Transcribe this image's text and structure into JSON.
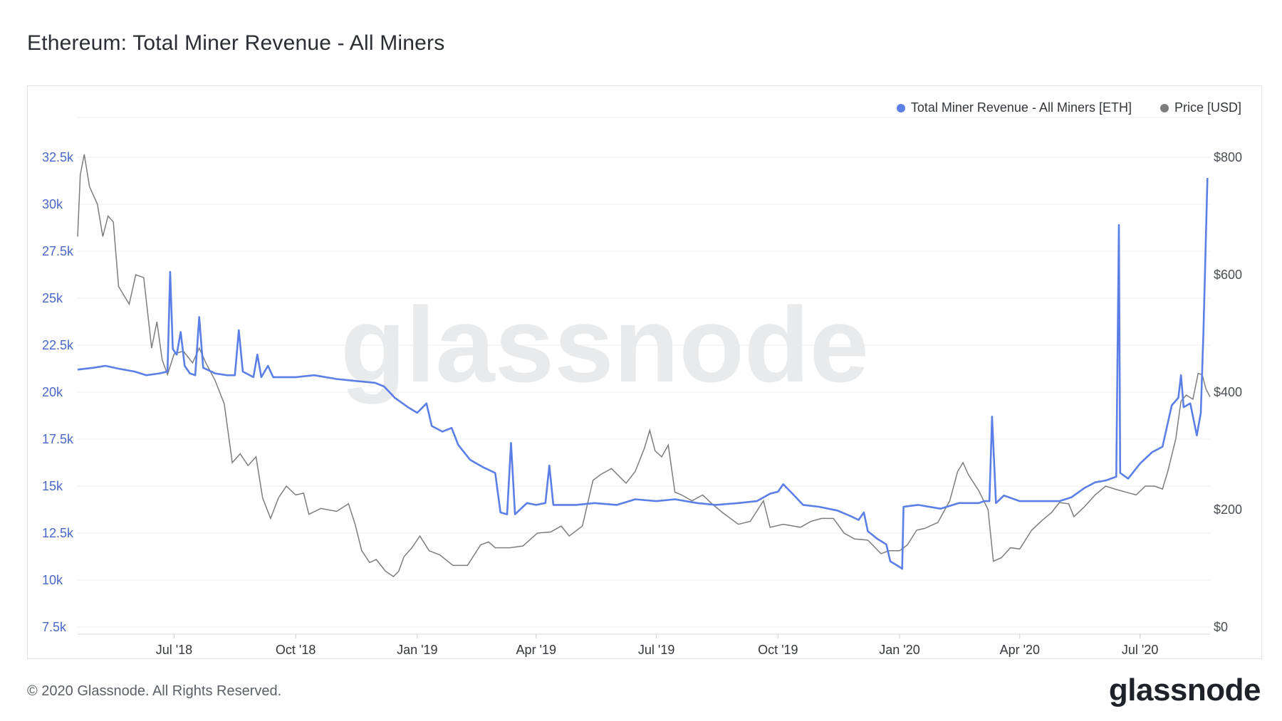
{
  "title": "Ethereum: Total Miner Revenue - All Miners",
  "footer": {
    "copyright": "© 2020 Glassnode. All Rights Reserved.",
    "brand": "glassnode"
  },
  "watermark": "glassnode",
  "colors": {
    "revenue": "#5b7fe6",
    "price": "#7d7d7d",
    "left_axis": "#4a67c9",
    "grid": "#ececec"
  },
  "chart_data": {
    "type": "line",
    "title": "Ethereum: Total Miner Revenue - All Miners",
    "legend_position": "top-right",
    "grid": true,
    "x_range": [
      "2018-04-19",
      "2020-08-23"
    ],
    "x_ticks": [
      {
        "date": "2018-07-01",
        "label": "Jul '18"
      },
      {
        "date": "2018-10-01",
        "label": "Oct '18"
      },
      {
        "date": "2019-01-01",
        "label": "Jan '19"
      },
      {
        "date": "2019-04-01",
        "label": "Apr '19"
      },
      {
        "date": "2019-07-01",
        "label": "Jul '19"
      },
      {
        "date": "2019-10-01",
        "label": "Oct '19"
      },
      {
        "date": "2020-01-01",
        "label": "Jan '20"
      },
      {
        "date": "2020-04-01",
        "label": "Apr '20"
      },
      {
        "date": "2020-07-01",
        "label": "Jul '20"
      }
    ],
    "y_left": {
      "min": 7500,
      "max": 32500,
      "ticks": [
        {
          "value": 7500,
          "label": "7.5k"
        },
        {
          "value": 10000,
          "label": "10k"
        },
        {
          "value": 12500,
          "label": "12.5k"
        },
        {
          "value": 15000,
          "label": "15k"
        },
        {
          "value": 17500,
          "label": "17.5k"
        },
        {
          "value": 20000,
          "label": "20k"
        },
        {
          "value": 22500,
          "label": "22.5k"
        },
        {
          "value": 25000,
          "label": "25k"
        },
        {
          "value": 27500,
          "label": "27.5k"
        },
        {
          "value": 30000,
          "label": "30k"
        },
        {
          "value": 32500,
          "label": "32.5k"
        }
      ]
    },
    "y_right": {
      "min": 0,
      "max": 800,
      "ticks": [
        {
          "value": 0,
          "label": "$0"
        },
        {
          "value": 200,
          "label": "$200"
        },
        {
          "value": 400,
          "label": "$400"
        },
        {
          "value": 600,
          "label": "$600"
        },
        {
          "value": 800,
          "label": "$800"
        }
      ]
    },
    "series": [
      {
        "name": "Total Miner Revenue - All Miners [ETH]",
        "axis": "left",
        "points": [
          [
            "2018-04-19",
            21200
          ],
          [
            "2018-05-01",
            21300
          ],
          [
            "2018-05-10",
            21400
          ],
          [
            "2018-05-20",
            21250
          ],
          [
            "2018-06-01",
            21100
          ],
          [
            "2018-06-10",
            20900
          ],
          [
            "2018-06-20",
            21000
          ],
          [
            "2018-06-26",
            21100
          ],
          [
            "2018-06-28",
            26400
          ],
          [
            "2018-06-30",
            22300
          ],
          [
            "2018-07-03",
            22000
          ],
          [
            "2018-07-06",
            23200
          ],
          [
            "2018-07-09",
            21400
          ],
          [
            "2018-07-13",
            21000
          ],
          [
            "2018-07-17",
            20900
          ],
          [
            "2018-07-20",
            24000
          ],
          [
            "2018-07-23",
            21300
          ],
          [
            "2018-08-01",
            21000
          ],
          [
            "2018-08-10",
            20900
          ],
          [
            "2018-08-16",
            20900
          ],
          [
            "2018-08-19",
            23300
          ],
          [
            "2018-08-22",
            21100
          ],
          [
            "2018-08-30",
            20800
          ],
          [
            "2018-09-02",
            22000
          ],
          [
            "2018-09-05",
            20800
          ],
          [
            "2018-09-10",
            21400
          ],
          [
            "2018-09-14",
            20800
          ],
          [
            "2018-10-01",
            20800
          ],
          [
            "2018-10-15",
            20900
          ],
          [
            "2018-11-01",
            20700
          ],
          [
            "2018-11-15",
            20600
          ],
          [
            "2018-11-30",
            20500
          ],
          [
            "2018-12-07",
            20300
          ],
          [
            "2018-12-15",
            19700
          ],
          [
            "2018-12-25",
            19200
          ],
          [
            "2019-01-01",
            18900
          ],
          [
            "2019-01-08",
            19400
          ],
          [
            "2019-01-12",
            18200
          ],
          [
            "2019-01-20",
            17900
          ],
          [
            "2019-01-27",
            18100
          ],
          [
            "2019-02-01",
            17200
          ],
          [
            "2019-02-10",
            16400
          ],
          [
            "2019-02-20",
            16000
          ],
          [
            "2019-03-01",
            15700
          ],
          [
            "2019-03-05",
            13600
          ],
          [
            "2019-03-10",
            13500
          ],
          [
            "2019-03-13",
            17300
          ],
          [
            "2019-03-16",
            13500
          ],
          [
            "2019-03-25",
            14100
          ],
          [
            "2019-04-01",
            14000
          ],
          [
            "2019-04-08",
            14100
          ],
          [
            "2019-04-11",
            16100
          ],
          [
            "2019-04-14",
            14000
          ],
          [
            "2019-05-01",
            14000
          ],
          [
            "2019-05-15",
            14100
          ],
          [
            "2019-06-01",
            14000
          ],
          [
            "2019-06-15",
            14300
          ],
          [
            "2019-07-01",
            14200
          ],
          [
            "2019-07-15",
            14300
          ],
          [
            "2019-08-01",
            14100
          ],
          [
            "2019-08-15",
            14000
          ],
          [
            "2019-09-01",
            14100
          ],
          [
            "2019-09-15",
            14200
          ],
          [
            "2019-09-25",
            14600
          ],
          [
            "2019-10-01",
            14700
          ],
          [
            "2019-10-05",
            15100
          ],
          [
            "2019-10-12",
            14600
          ],
          [
            "2019-10-20",
            14000
          ],
          [
            "2019-11-01",
            13900
          ],
          [
            "2019-11-15",
            13700
          ],
          [
            "2019-11-25",
            13400
          ],
          [
            "2019-12-01",
            13200
          ],
          [
            "2019-12-05",
            13600
          ],
          [
            "2019-12-08",
            12600
          ],
          [
            "2019-12-15",
            12200
          ],
          [
            "2019-12-22",
            11900
          ],
          [
            "2019-12-25",
            11000
          ],
          [
            "2020-01-01",
            10700
          ],
          [
            "2020-01-03",
            10600
          ],
          [
            "2020-01-04",
            13900
          ],
          [
            "2020-01-15",
            14000
          ],
          [
            "2020-02-01",
            13800
          ],
          [
            "2020-02-15",
            14100
          ],
          [
            "2020-03-01",
            14100
          ],
          [
            "2020-03-05",
            14200
          ],
          [
            "2020-03-09",
            14200
          ],
          [
            "2020-03-11",
            18700
          ],
          [
            "2020-03-14",
            14100
          ],
          [
            "2020-03-20",
            14500
          ],
          [
            "2020-04-01",
            14200
          ],
          [
            "2020-04-15",
            14200
          ],
          [
            "2020-05-01",
            14200
          ],
          [
            "2020-05-10",
            14400
          ],
          [
            "2020-05-20",
            14900
          ],
          [
            "2020-05-28",
            15200
          ],
          [
            "2020-06-05",
            15300
          ],
          [
            "2020-06-13",
            15500
          ],
          [
            "2020-06-15",
            28900
          ],
          [
            "2020-06-16",
            15700
          ],
          [
            "2020-06-22",
            15400
          ],
          [
            "2020-07-01",
            16200
          ],
          [
            "2020-07-10",
            16800
          ],
          [
            "2020-07-18",
            17100
          ],
          [
            "2020-07-25",
            19300
          ],
          [
            "2020-07-30",
            19700
          ],
          [
            "2020-08-01",
            20900
          ],
          [
            "2020-08-03",
            19200
          ],
          [
            "2020-08-08",
            19400
          ],
          [
            "2020-08-13",
            17700
          ],
          [
            "2020-08-16",
            18900
          ],
          [
            "2020-08-18",
            23200
          ],
          [
            "2020-08-21",
            31400
          ]
        ]
      },
      {
        "name": "Price [USD]",
        "axis": "right",
        "points": [
          [
            "2018-04-19",
            665
          ],
          [
            "2018-04-21",
            770
          ],
          [
            "2018-04-24",
            805
          ],
          [
            "2018-04-28",
            750
          ],
          [
            "2018-05-04",
            720
          ],
          [
            "2018-05-08",
            665
          ],
          [
            "2018-05-12",
            700
          ],
          [
            "2018-05-16",
            690
          ],
          [
            "2018-05-20",
            580
          ],
          [
            "2018-05-28",
            550
          ],
          [
            "2018-06-02",
            600
          ],
          [
            "2018-06-08",
            595
          ],
          [
            "2018-06-14",
            475
          ],
          [
            "2018-06-18",
            520
          ],
          [
            "2018-06-22",
            455
          ],
          [
            "2018-06-26",
            430
          ],
          [
            "2018-07-01",
            465
          ],
          [
            "2018-07-08",
            470
          ],
          [
            "2018-07-15",
            450
          ],
          [
            "2018-07-20",
            475
          ],
          [
            "2018-07-25",
            450
          ],
          [
            "2018-08-01",
            420
          ],
          [
            "2018-08-08",
            380
          ],
          [
            "2018-08-14",
            280
          ],
          [
            "2018-08-20",
            295
          ],
          [
            "2018-08-26",
            275
          ],
          [
            "2018-09-01",
            290
          ],
          [
            "2018-09-06",
            220
          ],
          [
            "2018-09-12",
            185
          ],
          [
            "2018-09-18",
            220
          ],
          [
            "2018-09-24",
            240
          ],
          [
            "2018-10-01",
            225
          ],
          [
            "2018-10-07",
            228
          ],
          [
            "2018-10-11",
            192
          ],
          [
            "2018-10-20",
            202
          ],
          [
            "2018-11-01",
            197
          ],
          [
            "2018-11-10",
            210
          ],
          [
            "2018-11-15",
            175
          ],
          [
            "2018-11-20",
            130
          ],
          [
            "2018-11-26",
            110
          ],
          [
            "2018-12-01",
            115
          ],
          [
            "2018-12-08",
            95
          ],
          [
            "2018-12-14",
            86
          ],
          [
            "2018-12-18",
            95
          ],
          [
            "2018-12-22",
            120
          ],
          [
            "2018-12-28",
            135
          ],
          [
            "2019-01-03",
            155
          ],
          [
            "2019-01-10",
            130
          ],
          [
            "2019-01-18",
            123
          ],
          [
            "2019-01-28",
            105
          ],
          [
            "2019-02-08",
            105
          ],
          [
            "2019-02-18",
            140
          ],
          [
            "2019-02-24",
            145
          ],
          [
            "2019-03-01",
            135
          ],
          [
            "2019-03-12",
            135
          ],
          [
            "2019-03-22",
            138
          ],
          [
            "2019-04-02",
            160
          ],
          [
            "2019-04-12",
            162
          ],
          [
            "2019-04-20",
            172
          ],
          [
            "2019-04-26",
            155
          ],
          [
            "2019-05-06",
            172
          ],
          [
            "2019-05-14",
            250
          ],
          [
            "2019-05-20",
            260
          ],
          [
            "2019-05-28",
            270
          ],
          [
            "2019-06-08",
            245
          ],
          [
            "2019-06-15",
            265
          ],
          [
            "2019-06-22",
            305
          ],
          [
            "2019-06-26",
            335
          ],
          [
            "2019-06-30",
            300
          ],
          [
            "2019-07-05",
            290
          ],
          [
            "2019-07-10",
            310
          ],
          [
            "2019-07-15",
            230
          ],
          [
            "2019-07-20",
            225
          ],
          [
            "2019-07-28",
            215
          ],
          [
            "2019-08-05",
            225
          ],
          [
            "2019-08-12",
            210
          ],
          [
            "2019-08-20",
            195
          ],
          [
            "2019-09-01",
            175
          ],
          [
            "2019-09-10",
            180
          ],
          [
            "2019-09-20",
            215
          ],
          [
            "2019-09-25",
            170
          ],
          [
            "2019-10-05",
            175
          ],
          [
            "2019-10-18",
            170
          ],
          [
            "2019-10-26",
            180
          ],
          [
            "2019-11-03",
            185
          ],
          [
            "2019-11-12",
            185
          ],
          [
            "2019-11-20",
            160
          ],
          [
            "2019-11-28",
            150
          ],
          [
            "2019-12-08",
            148
          ],
          [
            "2019-12-18",
            125
          ],
          [
            "2019-12-24",
            130
          ],
          [
            "2020-01-01",
            130
          ],
          [
            "2020-01-07",
            140
          ],
          [
            "2020-01-14",
            165
          ],
          [
            "2020-01-20",
            168
          ],
          [
            "2020-01-30",
            178
          ],
          [
            "2020-02-08",
            215
          ],
          [
            "2020-02-14",
            265
          ],
          [
            "2020-02-18",
            280
          ],
          [
            "2020-02-22",
            260
          ],
          [
            "2020-03-01",
            232
          ],
          [
            "2020-03-08",
            200
          ],
          [
            "2020-03-12",
            112
          ],
          [
            "2020-03-18",
            118
          ],
          [
            "2020-03-25",
            135
          ],
          [
            "2020-04-01",
            133
          ],
          [
            "2020-04-10",
            165
          ],
          [
            "2020-04-18",
            182
          ],
          [
            "2020-04-25",
            195
          ],
          [
            "2020-05-01",
            212
          ],
          [
            "2020-05-08",
            210
          ],
          [
            "2020-05-12",
            188
          ],
          [
            "2020-05-20",
            205
          ],
          [
            "2020-05-28",
            225
          ],
          [
            "2020-06-05",
            240
          ],
          [
            "2020-06-12",
            235
          ],
          [
            "2020-06-20",
            230
          ],
          [
            "2020-06-28",
            225
          ],
          [
            "2020-07-05",
            240
          ],
          [
            "2020-07-12",
            240
          ],
          [
            "2020-07-18",
            235
          ],
          [
            "2020-07-22",
            265
          ],
          [
            "2020-07-28",
            320
          ],
          [
            "2020-08-01",
            385
          ],
          [
            "2020-08-05",
            395
          ],
          [
            "2020-08-10",
            388
          ],
          [
            "2020-08-14",
            432
          ],
          [
            "2020-08-17",
            430
          ],
          [
            "2020-08-20",
            405
          ],
          [
            "2020-08-23",
            392
          ]
        ]
      }
    ]
  }
}
